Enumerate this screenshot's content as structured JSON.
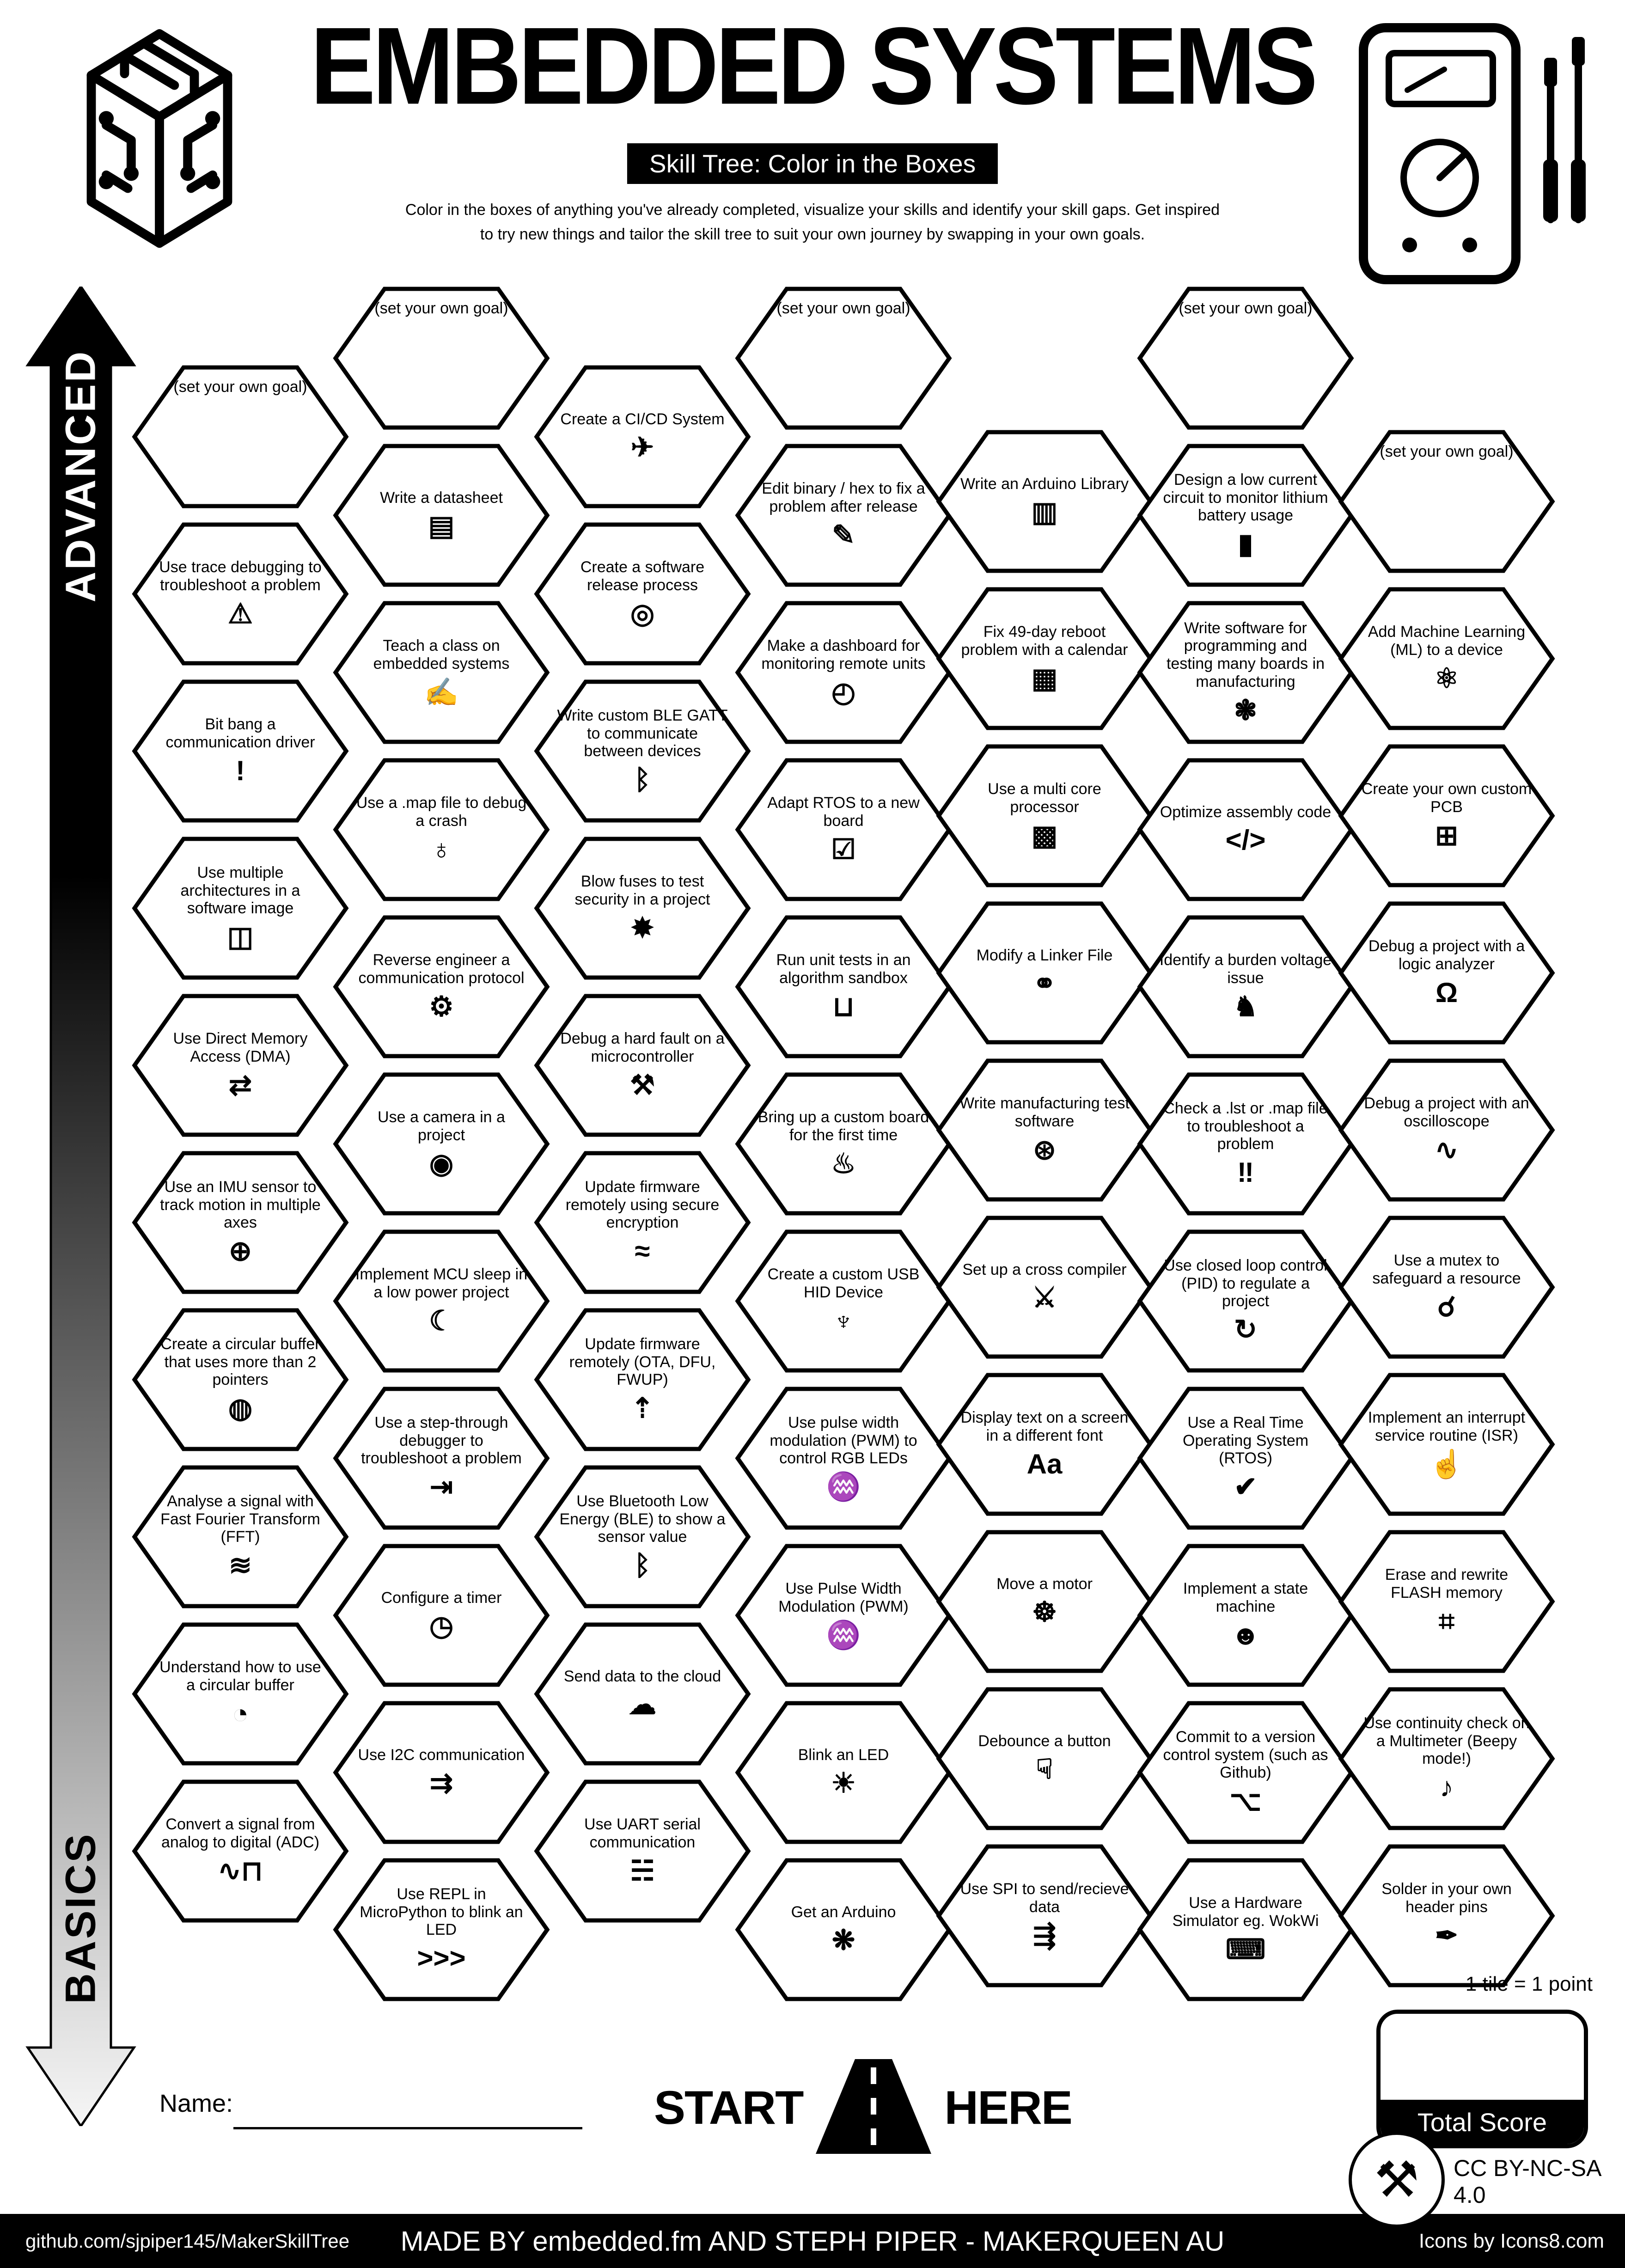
{
  "title": "EMBEDDED SYSTEMS",
  "subtitle": "Skill Tree: Color in the Boxes",
  "description": {
    "line1": "Color in the boxes of anything you've already completed, visualize your skills and identify your skill gaps.  Get inspired",
    "line2": "to try new things and tailor the skill tree to suit your own journey by swapping in your own goals."
  },
  "axis": {
    "advanced": "ADVANCED",
    "basics": "BASICS"
  },
  "name_label": "Name:",
  "start_here": {
    "start": "START",
    "here": "HERE"
  },
  "score": {
    "tile_note": "1 tile = 1 point",
    "total_label": "Total Score"
  },
  "license": "CC BY-NC-SA 4.0",
  "footer": {
    "left": "github.com/sjpiper145/MakerSkillTree",
    "center": "MADE BY embedded.fm AND STEPH PIPER  -  MAKERQUEEN AU",
    "right": "Icons by Icons8.com"
  },
  "hexes": [
    {
      "col": 0,
      "row": 0,
      "label": "(set your own goal)",
      "icon": "",
      "icon_name": "blank-goal",
      "goal": true
    },
    {
      "col": 0,
      "row": 1,
      "label": "Use trace debugging to troubleshoot a problem",
      "icon": "⚠",
      "icon_name": "monitor-warning-icon"
    },
    {
      "col": 0,
      "row": 2,
      "label": "Bit bang a communication driver",
      "icon": "!",
      "icon_name": "exclamation-icon"
    },
    {
      "col": 0,
      "row": 3,
      "label": "Use multiple architectures in a software image",
      "icon": "◫",
      "icon_name": "cube-circuit-icon"
    },
    {
      "col": 0,
      "row": 4,
      "label": "Use Direct Memory Access (DMA)",
      "icon": "⇄",
      "icon_name": "dma-transfer-icon"
    },
    {
      "col": 0,
      "row": 5,
      "label": "Use an IMU sensor to track motion in multiple axes",
      "icon": "⊕",
      "icon_name": "imu-axes-icon"
    },
    {
      "col": 0,
      "row": 6,
      "label": "Create a circular buffer that uses more than 2 pointers",
      "icon": "◍",
      "icon_name": "circular-buffer-icon"
    },
    {
      "col": 0,
      "row": 7,
      "label": "Analyse a signal with Fast Fourier Transform (FFT)",
      "icon": "≋",
      "icon_name": "fft-waveform-icon"
    },
    {
      "col": 0,
      "row": 8,
      "label": "Understand how to use a circular buffer",
      "icon": "◔",
      "icon_name": "ring-buffer-icon"
    },
    {
      "col": 0,
      "row": 9,
      "label": "Convert a signal from analog to digital (ADC)",
      "icon": "∿⊓",
      "icon_name": "adc-waveform-icon"
    },
    {
      "col": 1,
      "row": 0,
      "label": "(set your own goal)",
      "icon": "",
      "icon_name": "blank-goal",
      "goal": true
    },
    {
      "col": 1,
      "row": 1,
      "label": "Write a datasheet",
      "icon": "▤",
      "icon_name": "datasheet-document-icon"
    },
    {
      "col": 1,
      "row": 2,
      "label": "Teach a class on embedded systems",
      "icon": "✍",
      "icon_name": "teacher-icon"
    },
    {
      "col": 1,
      "row": 3,
      "label": "Use a .map file to debug a crash",
      "icon": "♁",
      "icon_name": "globe-icon"
    },
    {
      "col": 1,
      "row": 4,
      "label": "Reverse engineer a communication protocol",
      "icon": "⚙",
      "icon_name": "gear-reverse-icon"
    },
    {
      "col": 1,
      "row": 5,
      "label": "Use a camera in a project",
      "icon": "◉",
      "icon_name": "camera-icon"
    },
    {
      "col": 1,
      "row": 6,
      "label": "Implement MCU sleep in a low power project",
      "icon": "☾",
      "icon_name": "sleep-bed-icon"
    },
    {
      "col": 1,
      "row": 7,
      "label": "Use a step-through debugger to troubleshoot a problem",
      "icon": "⇥",
      "icon_name": "step-debugger-icon"
    },
    {
      "col": 1,
      "row": 8,
      "label": "Configure a timer",
      "icon": "◷",
      "icon_name": "stopwatch-icon"
    },
    {
      "col": 1,
      "row": 9,
      "label": "Use I2C communication",
      "icon": "⇉",
      "icon_name": "i2c-bus-icon"
    },
    {
      "col": 1,
      "row": 10,
      "label": "Use REPL in MicroPython to blink an LED",
      "icon": ">>>",
      "icon_name": "python-repl-icon"
    },
    {
      "col": 2,
      "row": 0,
      "label": "Create a CI/CD System",
      "icon": "✈",
      "icon_name": "rocket-box-icon"
    },
    {
      "col": 2,
      "row": 1,
      "label": "Create a software release process",
      "icon": "◎",
      "icon_name": "release-disc-icon"
    },
    {
      "col": 2,
      "row": 2,
      "label": "Write custom BLE GATT to communicate between devices",
      "icon": "ᛒ",
      "icon_name": "bluetooth-icon"
    },
    {
      "col": 2,
      "row": 3,
      "label": "Blow fuses to test security in a project",
      "icon": "✸",
      "icon_name": "explosion-icon"
    },
    {
      "col": 2,
      "row": 4,
      "label": "Debug a hard fault on a microcontroller",
      "icon": "⚒",
      "icon_name": "wrench-screwdriver-icon"
    },
    {
      "col": 2,
      "row": 5,
      "label": "Update firmware remotely using secure encryption",
      "icon": "≈",
      "icon_name": "wifi-lock-icon"
    },
    {
      "col": 2,
      "row": 6,
      "label": "Update firmware remotely (OTA, DFU, FWUP)",
      "icon": "⇡",
      "icon_name": "ota-wifi-icon"
    },
    {
      "col": 2,
      "row": 7,
      "label": "Use Bluetooth Low Energy (BLE) to show a sensor value",
      "icon": "ᛒ",
      "icon_name": "bluetooth-icon"
    },
    {
      "col": 2,
      "row": 8,
      "label": "Send data to the cloud",
      "icon": "☁",
      "icon_name": "cloud-icon"
    },
    {
      "col": 2,
      "row": 9,
      "label": "Use UART serial communication",
      "icon": "☵",
      "icon_name": "water-drop-icon"
    },
    {
      "col": 3,
      "row": 0,
      "label": "(set your own goal)",
      "icon": "",
      "icon_name": "blank-goal",
      "goal": true
    },
    {
      "col": 3,
      "row": 1,
      "label": "Edit binary / hex to fix a problem after release",
      "icon": "✎",
      "icon_name": "pencil-icon"
    },
    {
      "col": 3,
      "row": 2,
      "label": "Make a dashboard for monitoring remote units",
      "icon": "◴",
      "icon_name": "gauge-icon"
    },
    {
      "col": 3,
      "row": 3,
      "label": "Adapt RTOS to a new board",
      "icon": "☑",
      "icon_name": "monitor-check-icon"
    },
    {
      "col": 3,
      "row": 4,
      "label": "Run unit tests in an algorithm sandbox",
      "icon": "⊔",
      "icon_name": "sandbox-icon"
    },
    {
      "col": 3,
      "row": 5,
      "label": "Bring up a custom board for the first time",
      "icon": "♨",
      "icon_name": "birthday-cake-icon"
    },
    {
      "col": 3,
      "row": 6,
      "label": "Create a custom USB HID Device",
      "icon": "♆",
      "icon_name": "usb-icon"
    },
    {
      "col": 3,
      "row": 7,
      "label": "Use pulse width modulation (PWM) to control RGB LEDs",
      "icon": "♒",
      "icon_name": "pwm-waves-icon"
    },
    {
      "col": 3,
      "row": 8,
      "label": "Use Pulse Width Modulation (PWM)",
      "icon": "♒",
      "icon_name": "pwm-waves-icon"
    },
    {
      "col": 3,
      "row": 9,
      "label": "Blink an LED",
      "icon": "☀",
      "icon_name": "led-icon"
    },
    {
      "col": 3,
      "row": 10,
      "label": "Get an Arduino",
      "icon": "❋",
      "icon_name": "party-popper-icon"
    },
    {
      "col": 4,
      "row": 0,
      "label": "Write an Arduino Library",
      "icon": "▥",
      "icon_name": "bookshelf-icon"
    },
    {
      "col": 4,
      "row": 1,
      "label": "Fix 49-day reboot problem with a calendar",
      "icon": "▦",
      "icon_name": "calendar-icon"
    },
    {
      "col": 4,
      "row": 2,
      "label": "Use a multi core processor",
      "icon": "▩",
      "icon_name": "multicore-cube-icon"
    },
    {
      "col": 4,
      "row": 3,
      "label": "Modify a Linker File",
      "icon": "⚭",
      "icon_name": "chain-link-icon"
    },
    {
      "col": 4,
      "row": 4,
      "label": "Write manufacturing test software",
      "icon": "⊛",
      "icon_name": "manufacturing-box-icon"
    },
    {
      "col": 4,
      "row": 5,
      "label": "Set up a cross compiler",
      "icon": "⚔",
      "icon_name": "crossed-tools-icon"
    },
    {
      "col": 4,
      "row": 6,
      "label": "Display text on a screen in a different font",
      "icon": "Aa",
      "icon_name": "font-aa-icon"
    },
    {
      "col": 4,
      "row": 7,
      "label": "Move a motor",
      "icon": "☸",
      "icon_name": "stepper-motor-icon"
    },
    {
      "col": 4,
      "row": 8,
      "label": "Debounce a button",
      "icon": "☟",
      "icon_name": "finger-press-icon"
    },
    {
      "col": 4,
      "row": 9,
      "label": "Use SPI to send/recieve data",
      "icon": "⇶",
      "icon_name": "spi-arrows-icon"
    },
    {
      "col": 5,
      "row": 0,
      "label": "(set your own goal)",
      "icon": "",
      "icon_name": "blank-goal",
      "goal": true
    },
    {
      "col": 5,
      "row": 1,
      "label": "Design a low current circuit to monitor lithium battery usage",
      "icon": "▮",
      "icon_name": "battery-icon"
    },
    {
      "col": 5,
      "row": 2,
      "label": "Write software for programming and testing many boards in manufacturing",
      "icon": "❃",
      "icon_name": "octopus-icon"
    },
    {
      "col": 5,
      "row": 3,
      "label": "Optimize assembly code",
      "icon": "</>",
      "icon_name": "code-window-icon"
    },
    {
      "col": 5,
      "row": 4,
      "label": "Identify a burden voltage issue",
      "icon": "♞",
      "icon_name": "donkey-icon"
    },
    {
      "col": 5,
      "row": 5,
      "label": "Check a .lst or .map file to troubleshoot a problem",
      "icon": "‼",
      "icon_name": "monitor-alert-icon"
    },
    {
      "col": 5,
      "row": 6,
      "label": "Use closed loop control (PID) to regulate a project",
      "icon": "↻",
      "icon_name": "pid-loop-icon"
    },
    {
      "col": 5,
      "row": 7,
      "label": "Use a Real Time Operating System (RTOS)",
      "icon": "✔",
      "icon_name": "rtos-monitor-icon"
    },
    {
      "col": 5,
      "row": 8,
      "label": "Implement a state machine",
      "icon": "☻",
      "icon_name": "robot-icon"
    },
    {
      "col": 5,
      "row": 9,
      "label": "Commit to a version control system (such as Github)",
      "icon": "⌥",
      "icon_name": "git-branch-icon"
    },
    {
      "col": 5,
      "row": 10,
      "label": "Use a Hardware Simulator eg. WokWi",
      "icon": "⌨",
      "icon_name": "laptop-simulator-icon"
    },
    {
      "col": 6,
      "row": 0,
      "label": "(set your own goal)",
      "icon": "",
      "icon_name": "blank-goal",
      "goal": true
    },
    {
      "col": 6,
      "row": 1,
      "label": "Add Machine Learning (ML) to a device",
      "icon": "⚛",
      "icon_name": "ml-head-gear-icon"
    },
    {
      "col": 6,
      "row": 2,
      "label": "Create your own custom PCB",
      "icon": "⊞",
      "icon_name": "pcb-icon"
    },
    {
      "col": 6,
      "row": 3,
      "label": "Debug a project with a logic analyzer",
      "icon": "Ω",
      "icon_name": "logic-analyzer-icon"
    },
    {
      "col": 6,
      "row": 4,
      "label": "Debug a project with an oscilloscope",
      "icon": "∿",
      "icon_name": "oscilloscope-icon"
    },
    {
      "col": 6,
      "row": 5,
      "label": "Use a mutex to safeguard a resource",
      "icon": "☌",
      "icon_name": "handshake-icon"
    },
    {
      "col": 6,
      "row": 6,
      "label": "Implement an interrupt service routine (ISR)",
      "icon": "☝",
      "icon_name": "hand-raised-icon"
    },
    {
      "col": 6,
      "row": 7,
      "label": "Erase and rewrite FLASH memory",
      "icon": "⌗",
      "icon_name": "flash-chip-icon"
    },
    {
      "col": 6,
      "row": 8,
      "label": "Use continuity check on a Multimeter (Beepy mode!)",
      "icon": "♪",
      "icon_name": "multimeter-beep-icon"
    },
    {
      "col": 6,
      "row": 9,
      "label": "Solder in your own header pins",
      "icon": "✒",
      "icon_name": "soldering-iron-icon"
    }
  ]
}
